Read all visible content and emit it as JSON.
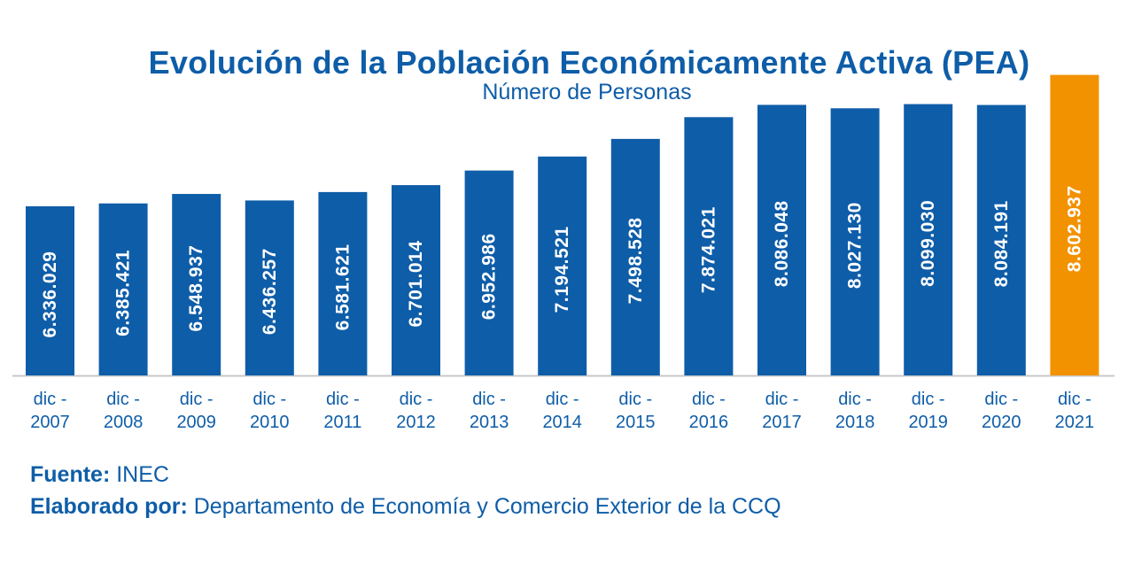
{
  "chart_data": {
    "type": "bar",
    "title": "Evolución de la Población Económicamente Activa (PEA)",
    "subtitle": "Número de Personas",
    "categories": [
      [
        "dic -",
        "2007"
      ],
      [
        "dic -",
        "2008"
      ],
      [
        "dic -",
        "2009"
      ],
      [
        "dic -",
        "2010"
      ],
      [
        "dic -",
        "2011"
      ],
      [
        "dic -",
        "2012"
      ],
      [
        "dic -",
        "2013"
      ],
      [
        "dic -",
        "2014"
      ],
      [
        "dic -",
        "2015"
      ],
      [
        "dic -",
        "2016"
      ],
      [
        "dic -",
        "2017"
      ],
      [
        "dic -",
        "2018"
      ],
      [
        "dic -",
        "2019"
      ],
      [
        "dic -",
        "2020"
      ],
      [
        "dic -",
        "2021"
      ]
    ],
    "values": [
      6336029,
      6385421,
      6548937,
      6436257,
      6581621,
      6701014,
      6952986,
      7194521,
      7498528,
      7874021,
      8086048,
      8027130,
      8099030,
      8084191,
      8602937
    ],
    "labels": [
      "6.336.029",
      "6.385.421",
      "6.548.937",
      "6.436.257",
      "6.581.621",
      "6.701.014",
      "6.952.986",
      "7.194.521",
      "7.498.528",
      "7.874.021",
      "8.086.048",
      "8.027.130",
      "8.099.030",
      "8.084.191",
      "8.602.937"
    ],
    "colors": {
      "default": "#0E5DA8",
      "highlight": "#F29200",
      "text": "#0E5DA8",
      "axis": "#C8C8C8"
    },
    "highlight_index": 14,
    "ylim": [
      0,
      9000000
    ],
    "grid": false,
    "legend": "none"
  },
  "source": {
    "label": "Fuente:",
    "value": "INEC"
  },
  "author": {
    "label": "Elaborado por:",
    "value": "Departamento de Economía y Comercio Exterior de la CCQ"
  }
}
